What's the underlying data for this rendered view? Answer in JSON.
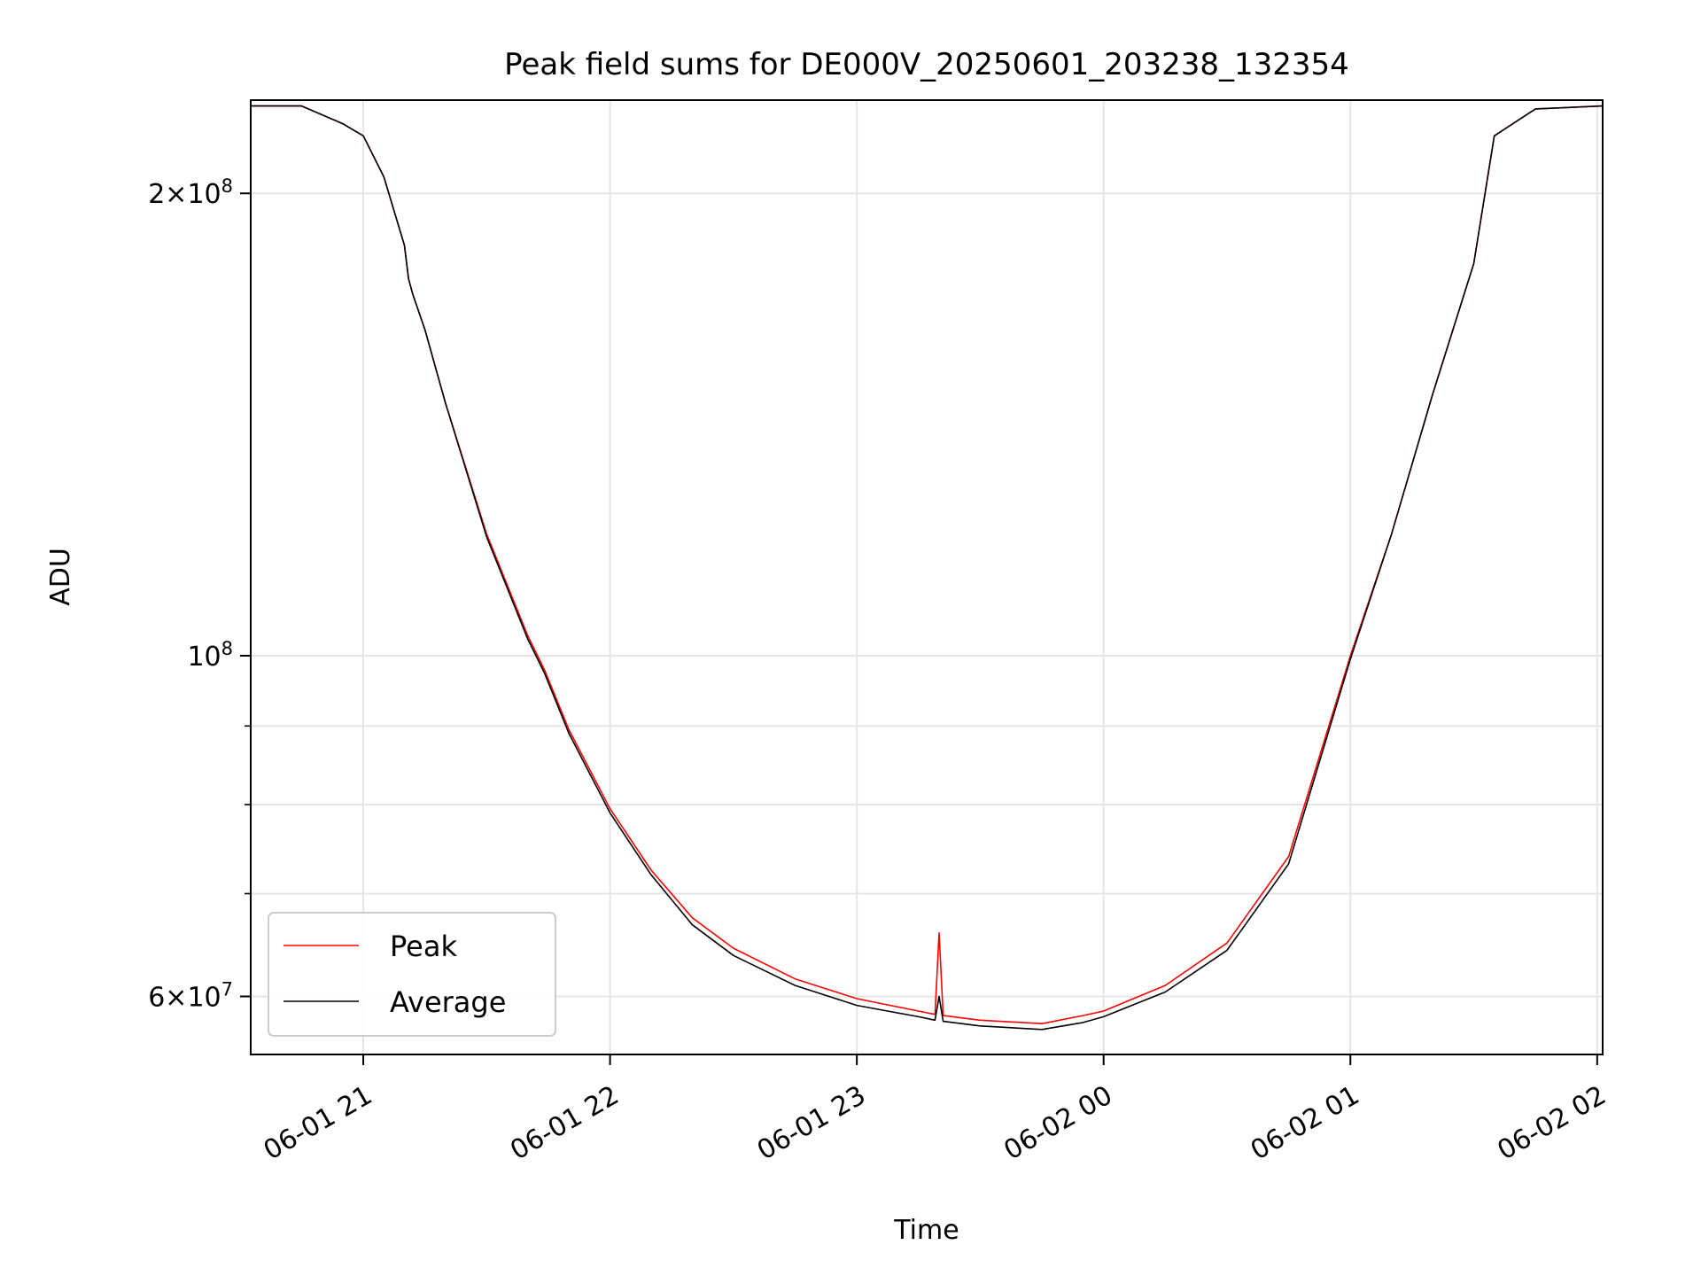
{
  "chart_data": {
    "type": "line",
    "title": "Peak field sums for DE000V_20250601_203238_132354",
    "xlabel": "Time",
    "ylabel": "ADU",
    "y_scale": "log",
    "ylim": [
      55000000,
      230000000
    ],
    "xlim": [
      "2025-06-01 20:32:38",
      "2025-06-02 02:01:20"
    ],
    "grid": true,
    "legend_position": "lower-left",
    "x_ticks": [
      {
        "time": "2025-06-01 21:00",
        "label": "06-01 21"
      },
      {
        "time": "2025-06-01 22:00",
        "label": "06-01 22"
      },
      {
        "time": "2025-06-01 23:00",
        "label": "06-01 23"
      },
      {
        "time": "2025-06-02 00:00",
        "label": "06-02 00"
      },
      {
        "time": "2025-06-02 01:00",
        "label": "06-02 01"
      },
      {
        "time": "2025-06-02 02:00",
        "label": "06-02 02"
      }
    ],
    "y_major_ticks": [
      {
        "value": 60000000,
        "mantissa": "6",
        "exp": "7"
      },
      {
        "value": 100000000,
        "mantissa": "",
        "exp": "8"
      },
      {
        "value": 200000000,
        "mantissa": "2",
        "exp": "8"
      }
    ],
    "y_minor_ticks": [
      70000000,
      80000000,
      90000000
    ],
    "series": [
      {
        "name": "Peak",
        "color": "#ff0000",
        "x": [
          "2025-06-01 20:32:38",
          "2025-06-01 20:45",
          "2025-06-01 20:55",
          "2025-06-01 21:00",
          "2025-06-01 21:05",
          "2025-06-01 21:10",
          "2025-06-01 21:11",
          "2025-06-01 21:12",
          "2025-06-01 21:15",
          "2025-06-01 21:20",
          "2025-06-01 21:30",
          "2025-06-01 21:40",
          "2025-06-01 21:44",
          "2025-06-01 21:50",
          "2025-06-01 22:00",
          "2025-06-01 22:10",
          "2025-06-01 22:20",
          "2025-06-01 22:30",
          "2025-06-01 22:45",
          "2025-06-01 23:00",
          "2025-06-01 23:15",
          "2025-06-01 23:19",
          "2025-06-01 23:20",
          "2025-06-01 23:21",
          "2025-06-01 23:30",
          "2025-06-01 23:45",
          "2025-06-01 23:55",
          "2025-06-02 00:00",
          "2025-06-02 00:15",
          "2025-06-02 00:30",
          "2025-06-02 00:45",
          "2025-06-02 01:00",
          "2025-06-02 01:10",
          "2025-06-02 01:20",
          "2025-06-02 01:30",
          "2025-06-02 01:35",
          "2025-06-02 01:45",
          "2025-06-02 02:01:20"
        ],
        "values": [
          228000000,
          228000000,
          222000000,
          218000000,
          205000000,
          185000000,
          176000000,
          172000000,
          163000000,
          146000000,
          120000000,
          103000000,
          98000000,
          89500000,
          79500000,
          72500000,
          67500000,
          64500000,
          61600000,
          59800000,
          58700000,
          58400000,
          66000000,
          58300000,
          57900000,
          57600000,
          58300000,
          58700000,
          61000000,
          65000000,
          74000000,
          100000000,
          120000000,
          148000000,
          180000000,
          218000000,
          227000000,
          228000000
        ]
      },
      {
        "name": "Average",
        "color": "#000000",
        "x": [
          "2025-06-01 20:32:38",
          "2025-06-01 20:45",
          "2025-06-01 20:55",
          "2025-06-01 21:00",
          "2025-06-01 21:05",
          "2025-06-01 21:10",
          "2025-06-01 21:11",
          "2025-06-01 21:12",
          "2025-06-01 21:15",
          "2025-06-01 21:20",
          "2025-06-01 21:30",
          "2025-06-01 21:40",
          "2025-06-01 21:44",
          "2025-06-01 21:50",
          "2025-06-01 22:00",
          "2025-06-01 22:10",
          "2025-06-01 22:20",
          "2025-06-01 22:30",
          "2025-06-01 22:45",
          "2025-06-01 23:00",
          "2025-06-01 23:15",
          "2025-06-01 23:19",
          "2025-06-01 23:20",
          "2025-06-01 23:21",
          "2025-06-01 23:30",
          "2025-06-01 23:45",
          "2025-06-01 23:55",
          "2025-06-02 00:00",
          "2025-06-02 00:15",
          "2025-06-02 00:30",
          "2025-06-02 00:45",
          "2025-06-02 01:00",
          "2025-06-02 01:10",
          "2025-06-02 01:20",
          "2025-06-02 01:30",
          "2025-06-02 01:35",
          "2025-06-02 01:45",
          "2025-06-02 02:01:20"
        ],
        "values": [
          228000000,
          228000000,
          222000000,
          218000000,
          205000000,
          185000000,
          176000000,
          172000000,
          163000000,
          146000000,
          119500000,
          102500000,
          97500000,
          89000000,
          79000000,
          72000000,
          66800000,
          63800000,
          61000000,
          59200000,
          58200000,
          57900000,
          60000000,
          57800000,
          57400000,
          57100000,
          57700000,
          58200000,
          60400000,
          64300000,
          73200000,
          99500000,
          120000000,
          148000000,
          180000000,
          218000000,
          227000000,
          228000000
        ]
      }
    ]
  }
}
